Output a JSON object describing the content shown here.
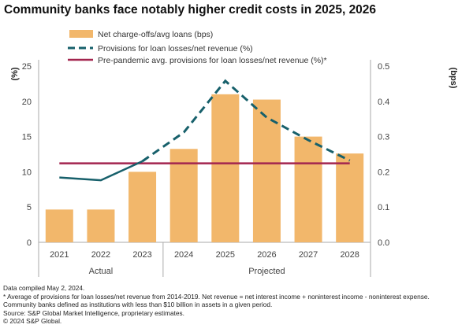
{
  "chart_data": {
    "type": "bar",
    "title": "Community banks face notably higher credit costs in 2025, 2026",
    "categories": [
      "2021",
      "2022",
      "2023",
      "2024",
      "2025",
      "2026",
      "2027",
      "2028"
    ],
    "groups": [
      {
        "label": "Actual",
        "categories": [
          "2021",
          "2022",
          "2023"
        ]
      },
      {
        "label": "Projected",
        "categories": [
          "2024",
          "2025",
          "2026",
          "2027",
          "2028"
        ]
      }
    ],
    "ylabel_left": "(%)",
    "ylabel_right": "(bps)",
    "ylim_left": [
      0,
      25
    ],
    "ylim_right": [
      0,
      0.5
    ],
    "yticks_left": [
      "0",
      "5",
      "10",
      "15",
      "20",
      "25"
    ],
    "yticks_right": [
      "0.0",
      "0.1",
      "0.2",
      "0.3",
      "0.4",
      "0.5"
    ],
    "series": [
      {
        "name": "Net charge-offs/avg loans (bps)",
        "type": "bar",
        "axis": "right",
        "color": "#f2b76b",
        "values": [
          0.093,
          0.093,
          0.2,
          0.265,
          0.42,
          0.405,
          0.3,
          0.252
        ]
      },
      {
        "name": "Provisions for loan losses/net revenue (%)",
        "type": "line",
        "axis": "left",
        "color": "#17606b",
        "style": "solid actual, dashed projected",
        "values": [
          9.2,
          8.8,
          11.5,
          15.6,
          22.9,
          17.7,
          14.5,
          11.6
        ]
      },
      {
        "name": "Pre-pandemic avg. provisions for loan losses/net revenue (%)*",
        "type": "line",
        "axis": "left",
        "color": "#a3254f",
        "values": [
          11.2,
          11.2,
          11.2,
          11.2,
          11.2,
          11.2,
          11.2,
          11.2
        ]
      }
    ],
    "legend": "top"
  },
  "notes": [
    "Data compiled May 2, 2024.",
    "* Average of provisions for loan losses/net revenue from 2014-2019. Net revenue = net interest income + noninterest income - noninterest expense.",
    "Community banks defined as institutions with less than $10 billion in assets in a given period.",
    "Source: S&P Global Market Intelligence, proprietary estimates.",
    "© 2024 S&P Global."
  ]
}
